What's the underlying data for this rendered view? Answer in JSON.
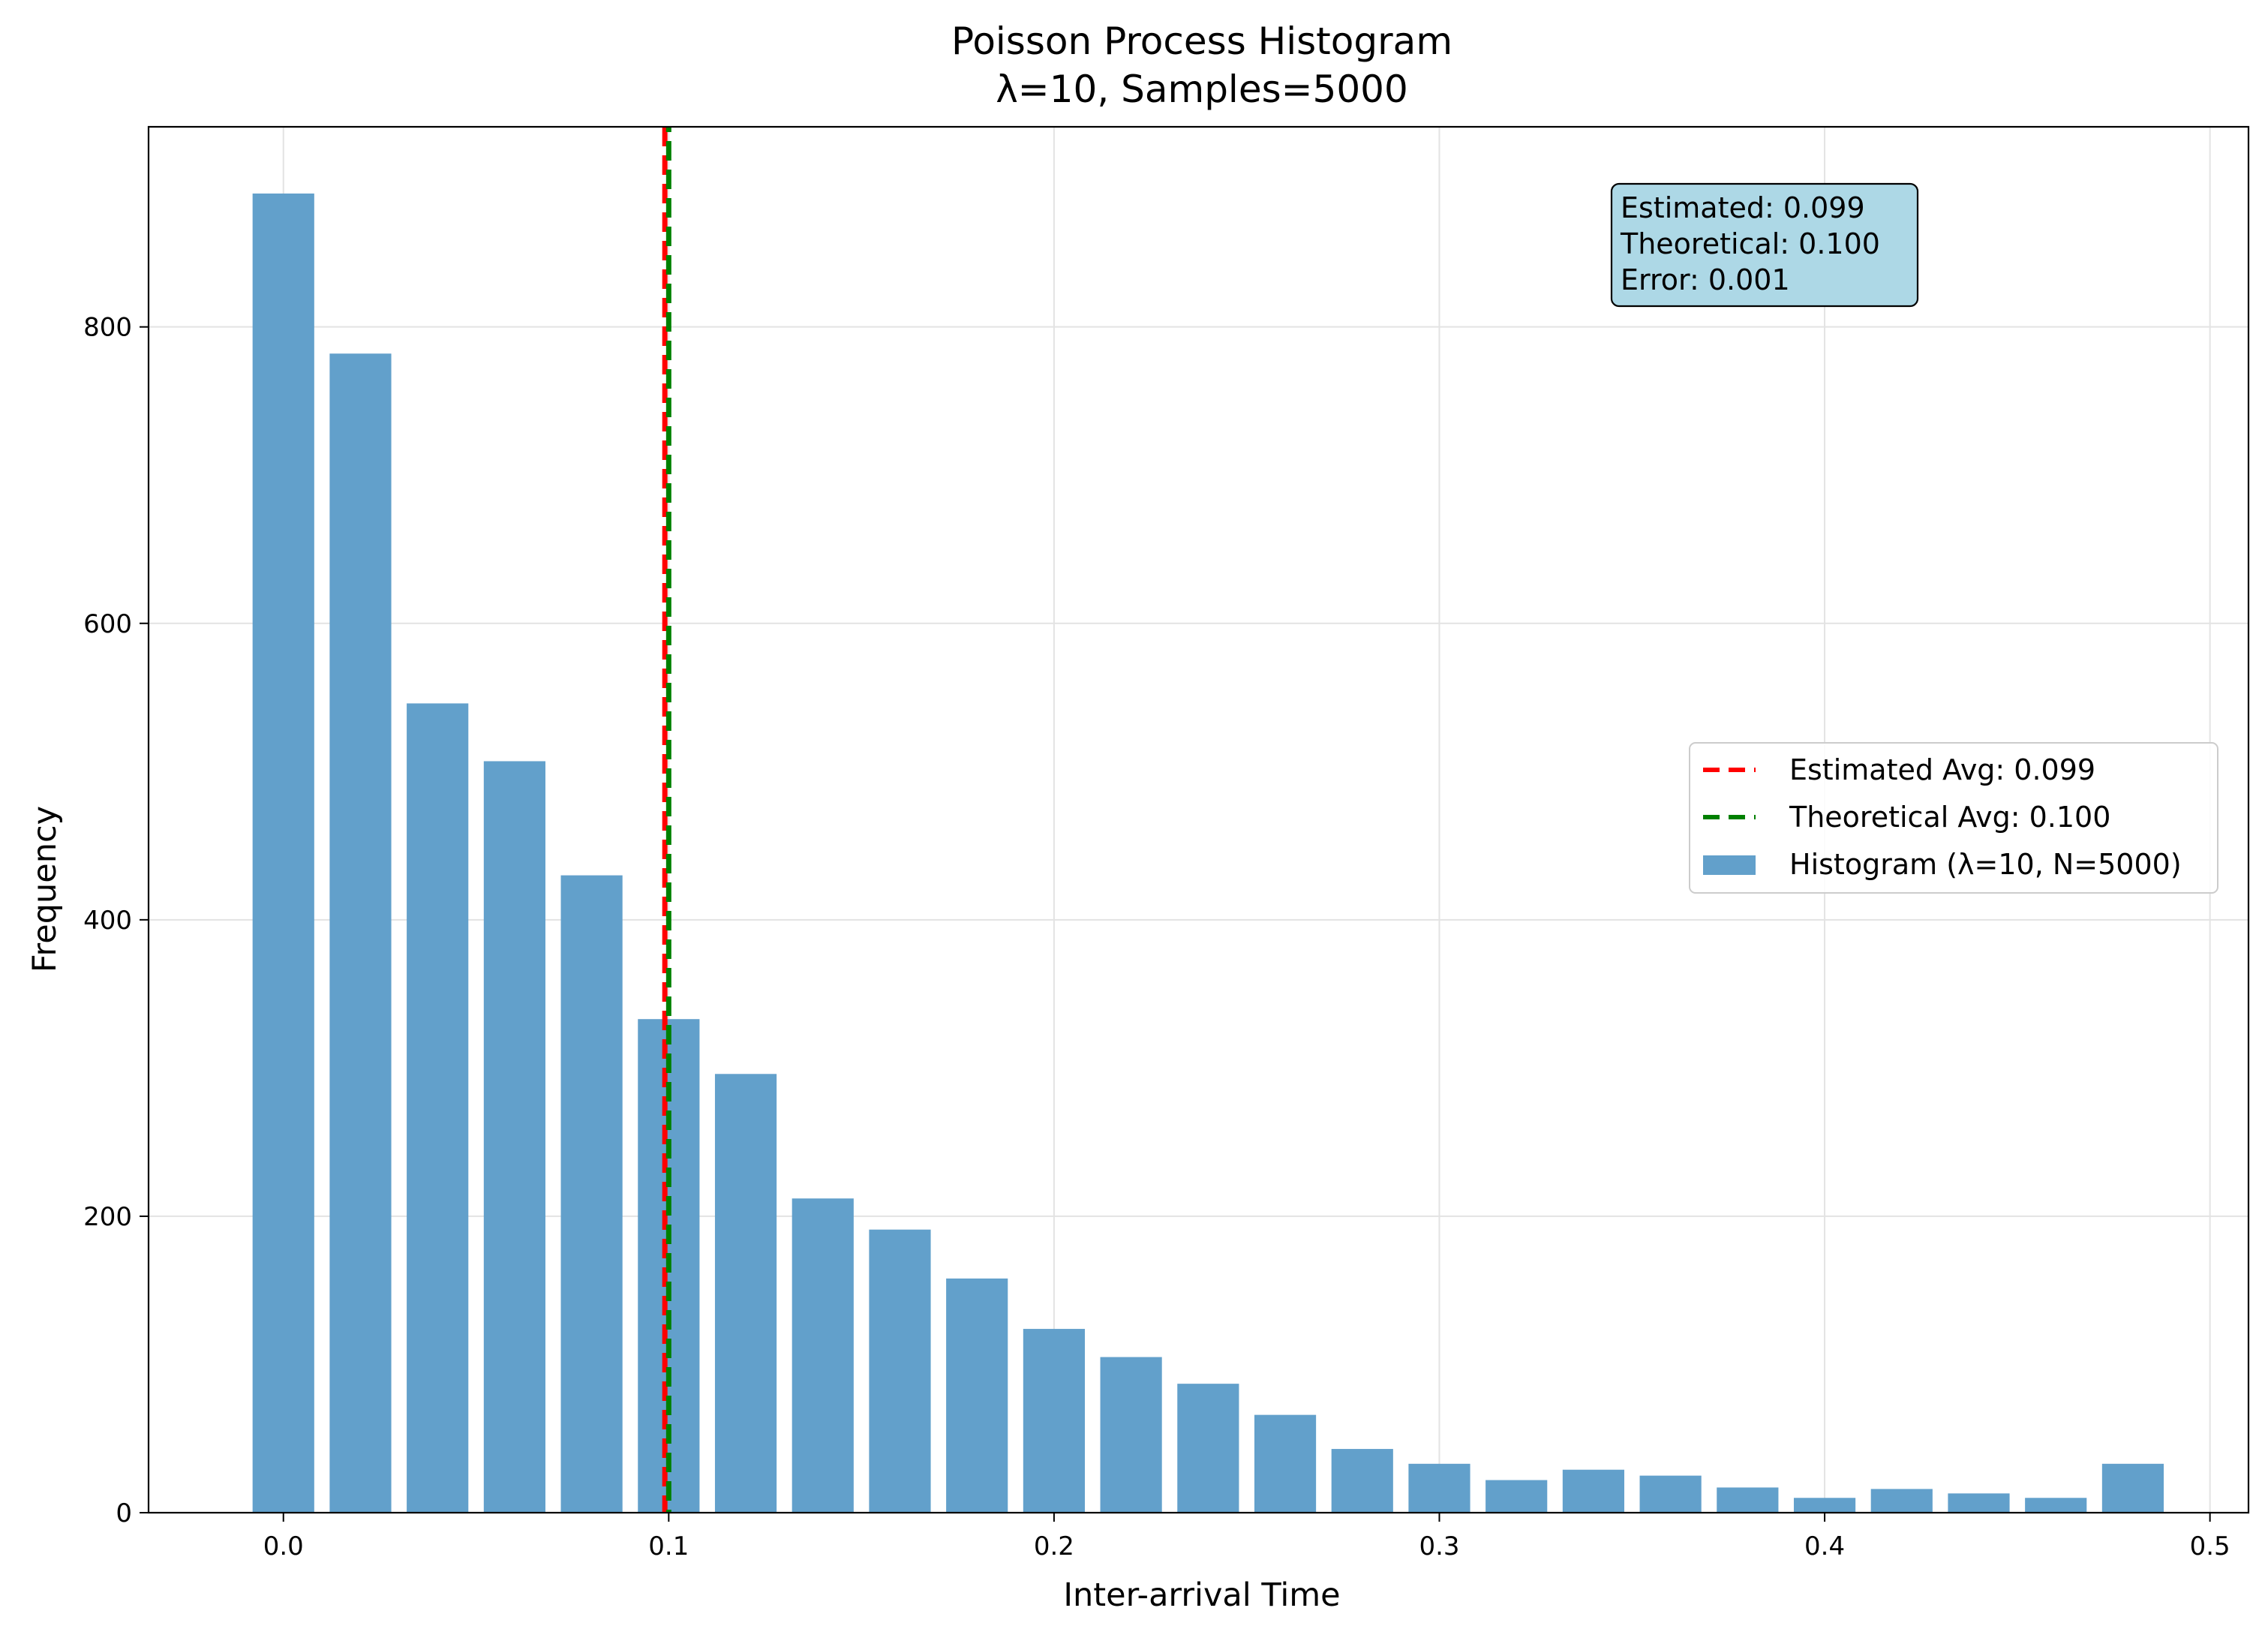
{
  "chart_data": {
    "type": "bar",
    "title": "Poisson Process Histogram",
    "subtitle": "λ=10, Samples=5000",
    "xlabel": "Inter-arrival Time",
    "ylabel": "Frequency",
    "xlim": [
      -0.035,
      0.51
    ],
    "ylim": [
      0,
      935
    ],
    "xticks": [
      0.0,
      0.1,
      0.2,
      0.3,
      0.4,
      0.5
    ],
    "xtick_labels": [
      "0.0",
      "0.1",
      "0.2",
      "0.3",
      "0.4",
      "0.5"
    ],
    "yticks": [
      0,
      200,
      400,
      600,
      800
    ],
    "ytick_labels": [
      "0",
      "200",
      "400",
      "600",
      "800"
    ],
    "grid": true,
    "bin_width": 0.02,
    "bar_width": 0.016,
    "series": [
      {
        "name": "Histogram (λ=10, N=5000)",
        "color": "#62a0cb",
        "x": [
          0.0,
          0.02,
          0.04,
          0.06,
          0.08,
          0.1,
          0.12,
          0.14,
          0.16,
          0.18,
          0.2,
          0.22,
          0.24,
          0.26,
          0.28,
          0.3,
          0.32,
          0.34,
          0.36,
          0.38,
          0.4,
          0.42,
          0.44,
          0.46,
          0.48
        ],
        "values": [
          890,
          782,
          546,
          507,
          430,
          333,
          296,
          212,
          191,
          158,
          124,
          105,
          87,
          66,
          43,
          33,
          22,
          29,
          25,
          17,
          10,
          16,
          13,
          10,
          33
        ]
      }
    ],
    "vlines": [
      {
        "name": "Estimated Avg: 0.099",
        "x": 0.099,
        "color": "#ff0000"
      },
      {
        "name": "Theoretical Avg: 0.100",
        "x": 0.1,
        "color": "#008000"
      }
    ],
    "legend_position": "center-right",
    "annotation": {
      "lines": [
        "Estimated: 0.099",
        "Theoretical: 0.100",
        "Error: 0.001"
      ],
      "background": "#add8e6",
      "position": "top-right"
    }
  }
}
